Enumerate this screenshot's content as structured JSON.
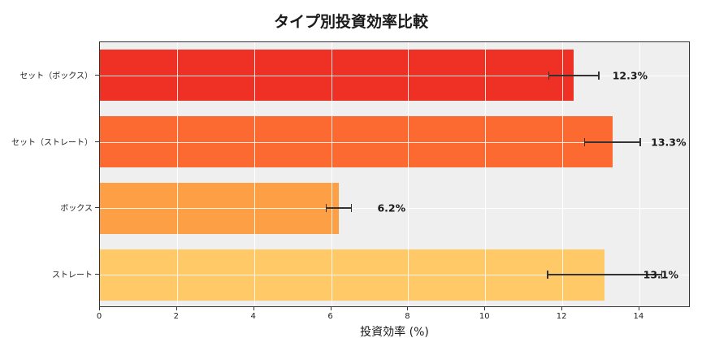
{
  "chart_data": {
    "type": "bar",
    "orientation": "horizontal",
    "title": "タイプ別投資効率比較",
    "xlabel": "投資効率 (%)",
    "ylabel": "",
    "xlim": [
      0,
      15.33
    ],
    "xticks": [
      0,
      2,
      4,
      6,
      8,
      10,
      12,
      14
    ],
    "grid": true,
    "legend": null,
    "categories": [
      "セット（ボックス）",
      "セット（ストレート）",
      "ボックス",
      "ストレート"
    ],
    "values": [
      12.3,
      13.3,
      6.2,
      13.1
    ],
    "value_labels": [
      "12.3%",
      "13.3%",
      "6.2%",
      "13.1%"
    ],
    "error": [
      0.65,
      0.72,
      0.33,
      1.48
    ],
    "colors": [
      "#ee3124",
      "#fc6a32",
      "#fd9f44",
      "#fec966"
    ]
  }
}
